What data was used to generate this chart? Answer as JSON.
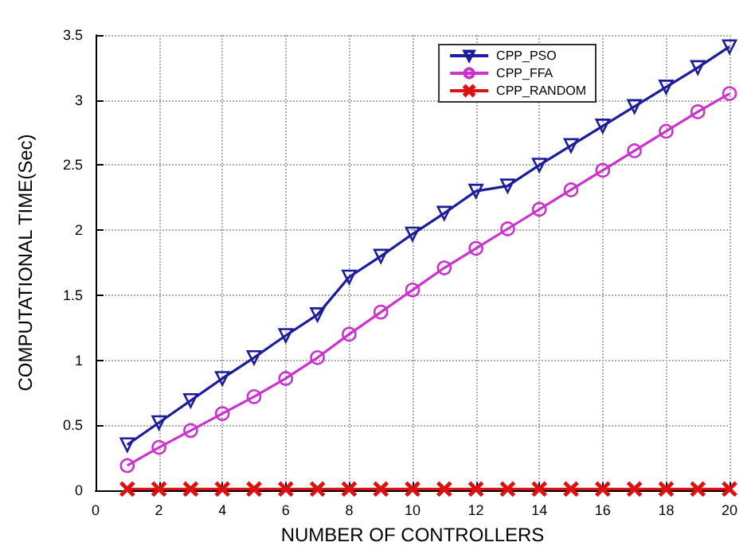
{
  "chart_data": {
    "type": "line",
    "xlabel": "NUMBER OF CONTROLLERS",
    "ylabel": "COMPUTATIONAL TIME(Sec)",
    "x": [
      1,
      2,
      3,
      4,
      5,
      6,
      7,
      8,
      9,
      10,
      11,
      12,
      13,
      14,
      15,
      16,
      17,
      18,
      19,
      20
    ],
    "series": [
      {
        "name": "CPP_PSO",
        "color": "#1c1c9c",
        "marker": "triangle",
        "values": [
          0.35,
          0.52,
          0.69,
          0.86,
          1.02,
          1.19,
          1.35,
          1.64,
          1.8,
          1.97,
          2.13,
          2.3,
          2.34,
          2.5,
          2.65,
          2.8,
          2.95,
          3.1,
          3.25,
          3.41
        ]
      },
      {
        "name": "CPP_FFA",
        "color": "#cc33cc",
        "marker": "circle",
        "values": [
          0.19,
          0.33,
          0.46,
          0.59,
          0.72,
          0.86,
          1.02,
          1.2,
          1.37,
          1.54,
          1.71,
          1.86,
          2.01,
          2.16,
          2.31,
          2.46,
          2.61,
          2.76,
          2.91,
          3.05
        ]
      },
      {
        "name": "CPP_RANDOM",
        "color": "#dd1111",
        "marker": "cross",
        "values": [
          0.01,
          0.01,
          0.01,
          0.01,
          0.01,
          0.01,
          0.01,
          0.01,
          0.01,
          0.01,
          0.01,
          0.01,
          0.01,
          0.01,
          0.01,
          0.01,
          0.01,
          0.01,
          0.01,
          0.01
        ]
      }
    ],
    "xlim": [
      0,
      20
    ],
    "xticks": [
      0,
      2,
      4,
      6,
      8,
      10,
      12,
      14,
      16,
      18,
      20
    ],
    "ylim": [
      0,
      3.5
    ],
    "yticks": [
      0,
      0.5,
      1,
      1.5,
      2,
      2.5,
      3,
      3.5
    ],
    "grid": true,
    "legend": "top right",
    "line_style": "solid"
  }
}
